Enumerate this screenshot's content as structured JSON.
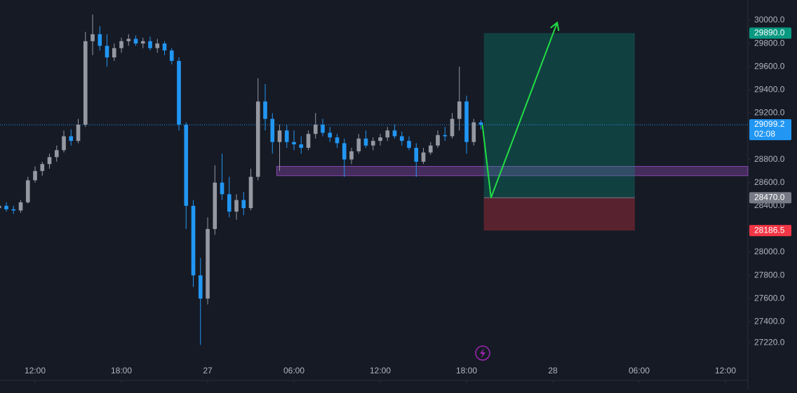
{
  "chart_data": {
    "type": "candlestick",
    "x": [
      9.5,
      10,
      10.5,
      11,
      11.5,
      12,
      12.5,
      13,
      13.5,
      14,
      14.5,
      15,
      15.5,
      16,
      16.5,
      17,
      17.5,
      18,
      18.5,
      19,
      19.5,
      20,
      20.5,
      21,
      21.5,
      22,
      22.5,
      23,
      23.5,
      24,
      24.5,
      25,
      25.5,
      26,
      26.5,
      27,
      27.5,
      28,
      28.5,
      29,
      29.5,
      30,
      30.5,
      31,
      31.5,
      32,
      32.5,
      33,
      33.5,
      34,
      34.5,
      35,
      35.5,
      36,
      36.5,
      37,
      37.5,
      38,
      38.5,
      39,
      39.5,
      40,
      40.5,
      41,
      41.5,
      42,
      42.5,
      43
    ],
    "open": [
      28380,
      28400,
      28370,
      28360,
      28430,
      28620,
      28700,
      28760,
      28820,
      28880,
      29000,
      28960,
      29100,
      29820,
      29880,
      29780,
      29680,
      29760,
      29820,
      29840,
      29800,
      29820,
      29760,
      29800,
      29740,
      29650,
      29100,
      28400,
      27800,
      27600,
      28200,
      28600,
      28500,
      28350,
      28450,
      28380,
      28650,
      29300,
      29150,
      28950,
      29050,
      28950,
      28930,
      28900,
      29020,
      29100,
      29030,
      28990,
      28940,
      28800,
      28870,
      28980,
      28920,
      28960,
      28990,
      29050,
      29000,
      28960,
      28900,
      28780,
      28860,
      28920,
      29010,
      29000,
      29150,
      29300,
      28950,
      29120
    ],
    "high": [
      28420,
      28430,
      28400,
      28450,
      28650,
      28740,
      28780,
      28850,
      28920,
      29050,
      29060,
      29150,
      29900,
      30050,
      29950,
      29880,
      29800,
      29850,
      29880,
      29870,
      29850,
      29860,
      29840,
      29820,
      29760,
      29680,
      29120,
      28450,
      27950,
      28300,
      28750,
      28850,
      28650,
      28500,
      28520,
      28720,
      29500,
      29450,
      29200,
      29100,
      29100,
      29050,
      29000,
      29050,
      29200,
      29150,
      29080,
      29020,
      28980,
      28900,
      29020,
      29050,
      28990,
      29020,
      29080,
      29100,
      29040,
      29000,
      28940,
      28900,
      28950,
      29050,
      29080,
      29200,
      29600,
      29350,
      29150,
      29140
    ],
    "low": [
      28340,
      28350,
      28330,
      28340,
      28420,
      28600,
      28660,
      28720,
      28780,
      28860,
      28920,
      28940,
      29080,
      29700,
      29740,
      29600,
      29650,
      29720,
      29780,
      29780,
      29760,
      29740,
      29720,
      29700,
      29620,
      29050,
      28200,
      27700,
      27200,
      27550,
      28150,
      28450,
      28300,
      28280,
      28320,
      28360,
      28620,
      29050,
      28850,
      28700,
      28900,
      28880,
      28850,
      28880,
      28980,
      29000,
      28950,
      28900,
      28650,
      28760,
      28850,
      28900,
      28880,
      28920,
      28960,
      28980,
      28920,
      28880,
      28650,
      28760,
      28840,
      28900,
      28960,
      28980,
      29050,
      28850,
      28920,
      29060
    ],
    "close": [
      28400,
      28370,
      28360,
      28430,
      28620,
      28700,
      28760,
      28820,
      28880,
      29000,
      28960,
      29100,
      29820,
      29880,
      29780,
      29680,
      29760,
      29820,
      29840,
      29800,
      29820,
      29760,
      29800,
      29740,
      29650,
      29100,
      28400,
      27800,
      27600,
      28200,
      28600,
      28500,
      28350,
      28450,
      28380,
      28650,
      29300,
      29150,
      28950,
      29050,
      28950,
      28930,
      28900,
      29020,
      29100,
      29030,
      28990,
      28940,
      28800,
      28870,
      28980,
      28920,
      28960,
      28990,
      29050,
      29000,
      28960,
      28900,
      28780,
      28860,
      28920,
      29010,
      29000,
      29150,
      29300,
      28950,
      29120,
      29099.2
    ],
    "up_color": "#9598a1",
    "down_color": "#2196f3",
    "xlim": [
      9.56,
      61.56
    ],
    "xticks": [
      {
        "value": 12,
        "label": "12:00"
      },
      {
        "value": 18,
        "label": "18:00"
      },
      {
        "value": 24,
        "label": "27"
      },
      {
        "value": 30,
        "label": "06:00"
      },
      {
        "value": 36,
        "label": "12:00"
      },
      {
        "value": 42,
        "label": "18:00"
      },
      {
        "value": 48,
        "label": "28"
      },
      {
        "value": 54,
        "label": "06:00"
      },
      {
        "value": 60,
        "label": "12:00"
      }
    ],
    "ylim": [
      27063.4,
      30175.2
    ],
    "yticks": [
      {
        "value": 27220,
        "label": "27220.0"
      },
      {
        "value": 27400,
        "label": "27400.0"
      },
      {
        "value": 27600,
        "label": "27600.0"
      },
      {
        "value": 27800,
        "label": "27800.0"
      },
      {
        "value": 28000,
        "label": "28000.0"
      },
      {
        "value": 28400,
        "label": "28400.0"
      },
      {
        "value": 28600,
        "label": "28600.0"
      },
      {
        "value": 28800,
        "label": "28800.0"
      },
      {
        "value": 29200,
        "label": "29200.0"
      },
      {
        "value": 29400,
        "label": "29400.0"
      },
      {
        "value": 29600,
        "label": "29600.0"
      },
      {
        "value": 29800,
        "label": "29800.0"
      },
      {
        "value": 30000,
        "label": "30000.0"
      }
    ],
    "last_price": 29099.2,
    "last_price_color": "#2196f3",
    "countdown": "02:08",
    "zone": {
      "x": [
        28.8,
        61.56
      ],
      "y": [
        28660,
        28740
      ],
      "color": "#9c4fc4"
    },
    "position": {
      "x": [
        43.2,
        53.7
      ],
      "target": {
        "value": 29890,
        "label": "29890.0",
        "color": "#089981"
      },
      "entry": {
        "value": 28470,
        "label": "28470.0",
        "color": "#787b86"
      },
      "stop": {
        "value": 28186.5,
        "label": "28186.5",
        "color": "#f23645"
      }
    },
    "arrow": {
      "x": [
        43.1,
        43.7,
        48.3
      ],
      "y": [
        29099.2,
        28470,
        29980
      ],
      "color": "#22dd44"
    }
  }
}
